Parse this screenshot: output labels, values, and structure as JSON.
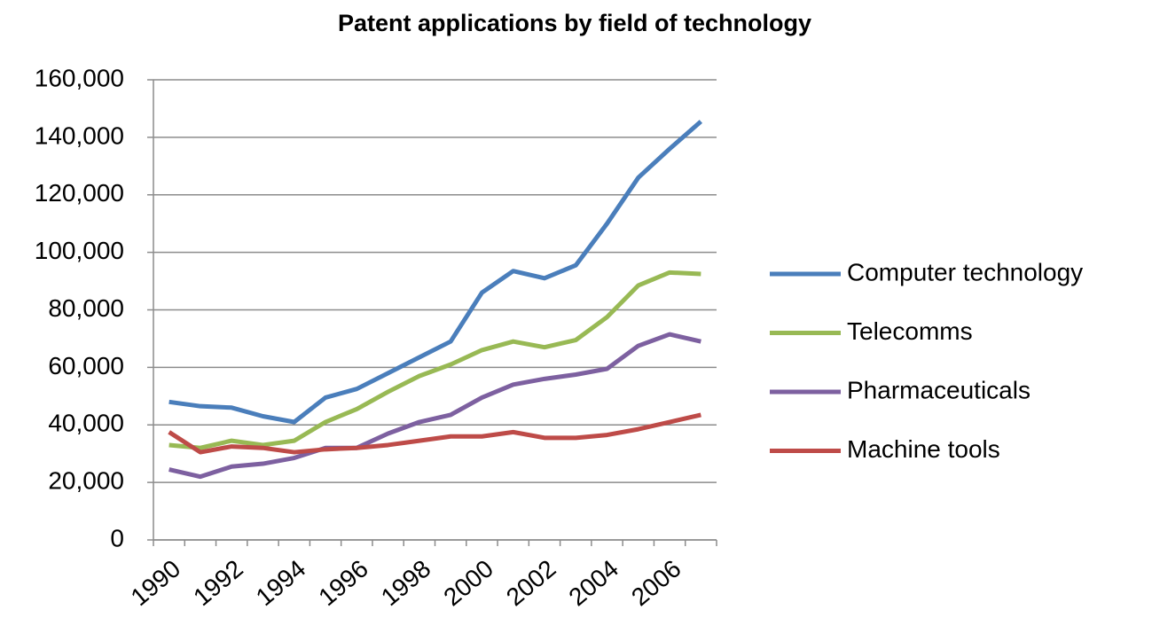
{
  "chart_data": {
    "type": "line",
    "title": "Patent applications  by field of technology",
    "categories": [
      "1990",
      null,
      "1992",
      null,
      "1994",
      null,
      "1996",
      null,
      "1998",
      null,
      "2000",
      null,
      "2002",
      null,
      "2004",
      null,
      "2006",
      null
    ],
    "series": [
      {
        "name": "Computer technology",
        "color": "#4a7ebb",
        "values": [
          48000,
          46500,
          46000,
          43000,
          41000,
          49500,
          52500,
          58000,
          63500,
          69000,
          86000,
          93500,
          91000,
          95500,
          110000,
          126000,
          136000,
          145500
        ]
      },
      {
        "name": "Telecomms",
        "color": "#98b954",
        "values": [
          33000,
          32000,
          34500,
          33000,
          34500,
          41000,
          45500,
          51500,
          57000,
          61000,
          66000,
          69000,
          67000,
          69500,
          77500,
          88500,
          93000,
          92500
        ]
      },
      {
        "name": "Pharmaceuticals",
        "color": "#7d60a0",
        "values": [
          24500,
          22000,
          25500,
          26500,
          28500,
          32000,
          32000,
          37000,
          41000,
          43500,
          49500,
          54000,
          56000,
          57500,
          59500,
          67500,
          71500,
          69000
        ]
      },
      {
        "name": "Machine tools",
        "color": "#be4b48",
        "values": [
          37500,
          30500,
          32500,
          32000,
          30500,
          31500,
          32000,
          33000,
          34500,
          36000,
          36000,
          37500,
          35500,
          35500,
          36500,
          38500,
          41000,
          43500
        ]
      }
    ],
    "ylim": [
      0,
      160000
    ],
    "yticks": [
      0,
      {
        "value": 20000,
        "label": "20,000"
      },
      {
        "value": 40000,
        "label": "40,000"
      },
      {
        "value": 60000,
        "label": "60,000"
      },
      {
        "value": 80000,
        "label": "80,000"
      },
      {
        "value": 100000,
        "label": "100,000"
      },
      {
        "value": 120000,
        "label": "120,000"
      },
      {
        "value": 140000,
        "label": "140,000"
      },
      {
        "value": 160000,
        "label": "160,000"
      }
    ],
    "grid": true,
    "legend": "right"
  }
}
